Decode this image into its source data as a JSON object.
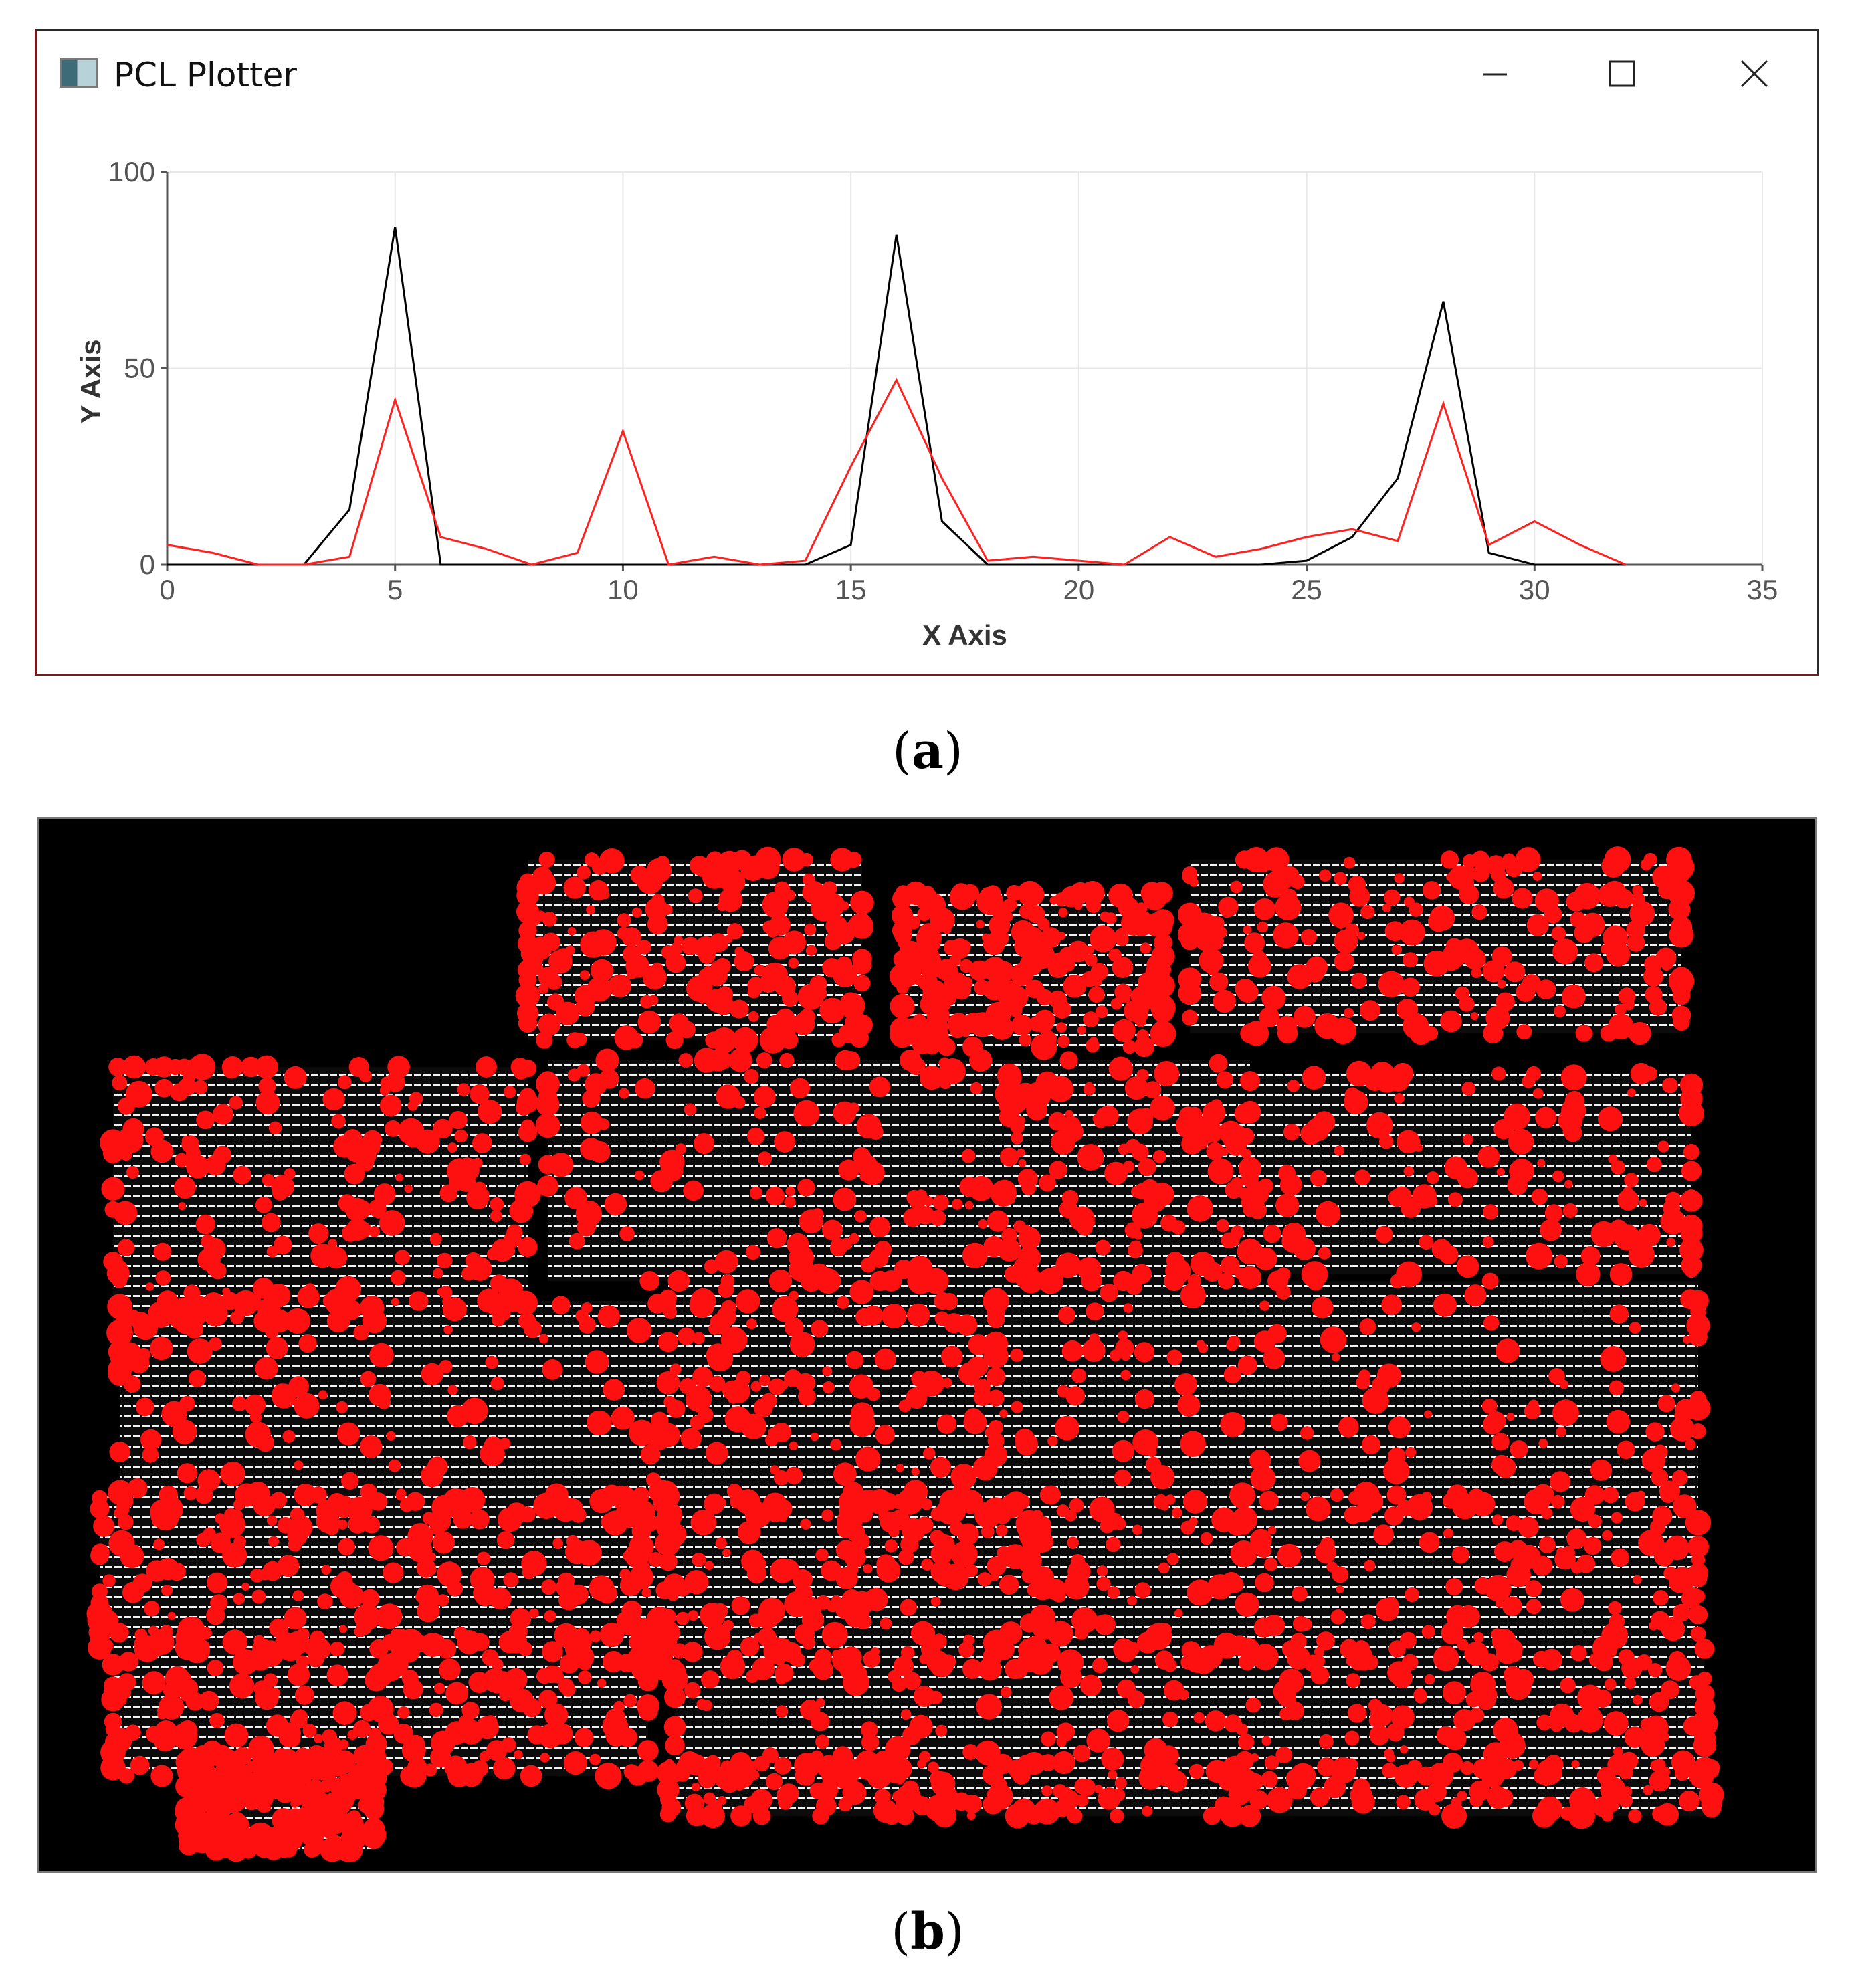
{
  "window": {
    "title": "PCL Plotter",
    "controls": {
      "minimize": "minimize",
      "maximize": "maximize",
      "close": "close"
    }
  },
  "captions": {
    "a": "a",
    "b": "b"
  },
  "colors": {
    "series_black": "#000000",
    "series_red": "#ff2020",
    "background_cloud": "#000000",
    "cloud_points": "#ffffff",
    "cloud_highlight": "#ff0000"
  },
  "chart_data": {
    "type": "line",
    "title": "",
    "xlabel": "X Axis",
    "ylabel": "Y Axis",
    "xlim": [
      0,
      35
    ],
    "ylim": [
      0,
      100
    ],
    "xticks": [
      0,
      5,
      10,
      15,
      20,
      25,
      30,
      35
    ],
    "yticks": [
      0,
      50,
      100
    ],
    "grid": true,
    "series": [
      {
        "color": "#000000",
        "x": [
          0,
          1,
          2,
          3,
          4,
          5,
          6,
          7,
          8,
          9,
          10,
          11,
          12,
          13,
          14,
          15,
          16,
          17,
          18,
          19,
          20,
          21,
          22,
          23,
          24,
          25,
          26,
          27,
          28,
          29,
          30,
          31,
          32
        ],
        "y": [
          0,
          0,
          0,
          0,
          14,
          86,
          0,
          0,
          0,
          0,
          0,
          0,
          0,
          0,
          0,
          5,
          84,
          11,
          0,
          0,
          0,
          0,
          0,
          0,
          0,
          1,
          7,
          22,
          67,
          3,
          0,
          0,
          0
        ]
      },
      {
        "color": "#ff2020",
        "x": [
          0,
          1,
          2,
          3,
          4,
          5,
          6,
          7,
          8,
          9,
          10,
          11,
          12,
          13,
          14,
          15,
          16,
          17,
          18,
          19,
          20,
          21,
          22,
          23,
          24,
          25,
          26,
          27,
          28,
          29,
          30,
          31,
          32
        ],
        "y": [
          5,
          3,
          0,
          0,
          2,
          42,
          7,
          4,
          0,
          3,
          34,
          0,
          2,
          0,
          1,
          25,
          47,
          22,
          1,
          2,
          1,
          0,
          7,
          2,
          4,
          7,
          9,
          6,
          41,
          5,
          11,
          5,
          0
        ]
      }
    ]
  }
}
